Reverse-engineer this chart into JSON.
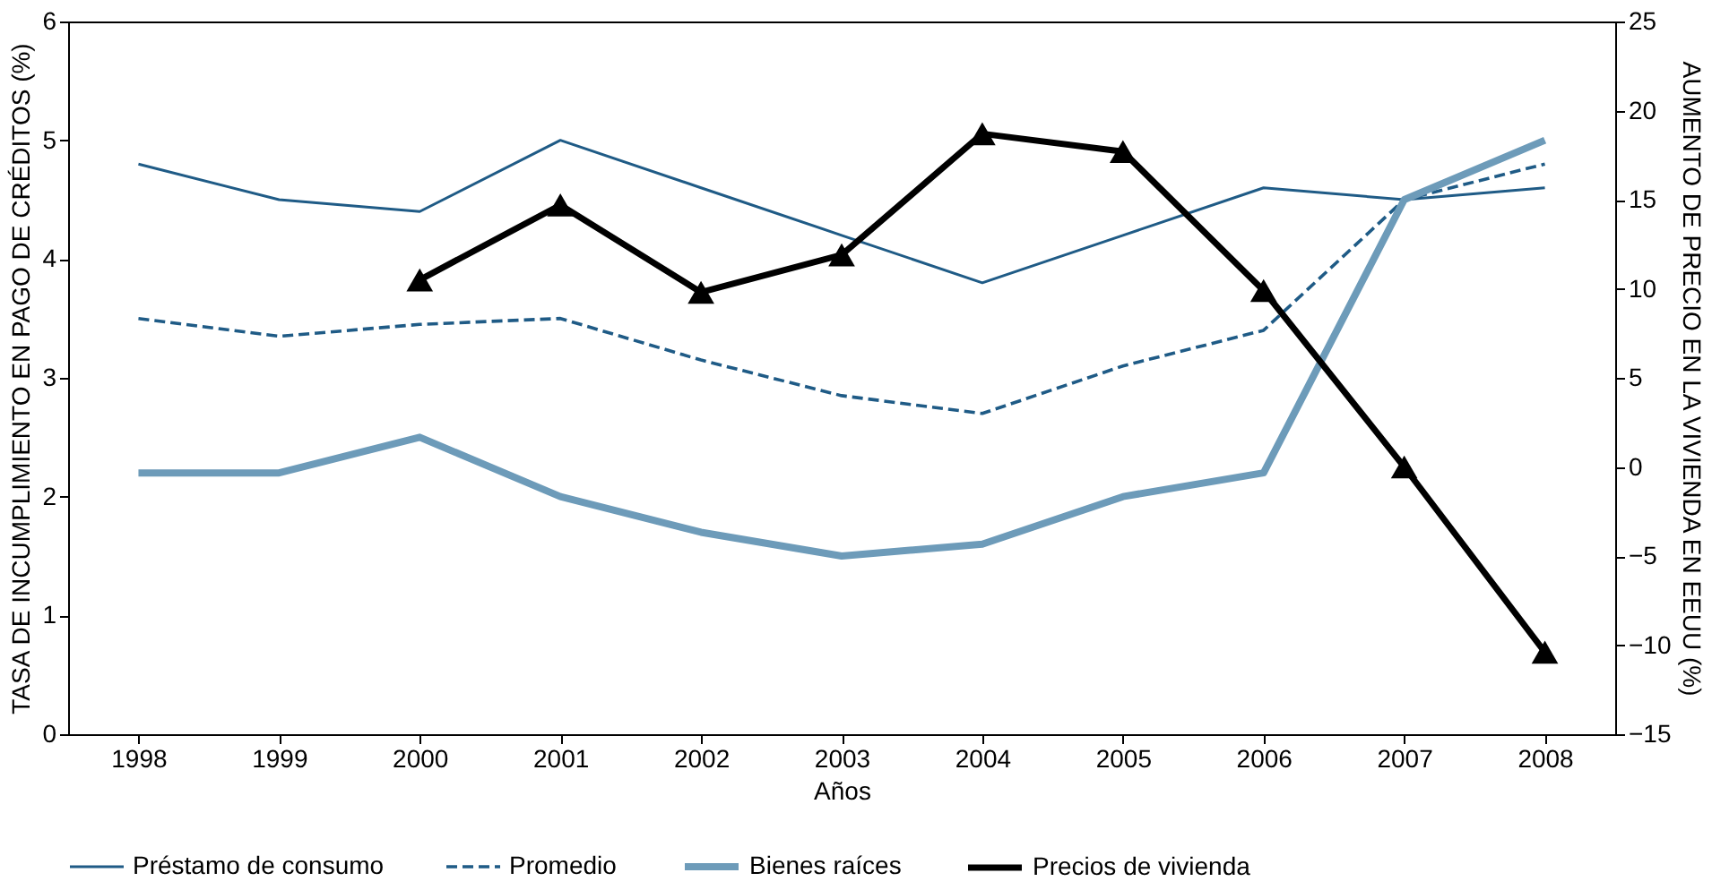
{
  "chart_data": {
    "type": "line",
    "xlabel": "Años",
    "ylabel": "TASA DE INCUMPLIMIENTO EN PAGO DE CRÉDITOS (%)",
    "y2label": "AUMENTO DE PRECIO EN LA VIVIENDA EN EEUU (%)",
    "categories": [
      "1998",
      "1999",
      "2000",
      "2001",
      "2002",
      "2003",
      "2004",
      "2005",
      "2006",
      "2007",
      "2008"
    ],
    "series": [
      {
        "name": "Préstamo de consumo",
        "color": "#1f5b86",
        "line_style": "solid",
        "marker": "none",
        "values": [
          4.8,
          4.5,
          4.4,
          5.0,
          4.6,
          4.2,
          3.8,
          4.2,
          4.6,
          4.5,
          4.6
        ]
      },
      {
        "name": "Promedio",
        "color": "#1f5b86",
        "line_style": "dashed",
        "marker": "none",
        "values": [
          3.5,
          3.35,
          3.45,
          3.5,
          3.15,
          2.85,
          2.7,
          3.1,
          3.4,
          4.5,
          4.8
        ]
      },
      {
        "name": "Bienes raíces",
        "color": "#6d9bb9",
        "line_style": "solid",
        "marker": "none",
        "values": [
          2.2,
          2.2,
          2.5,
          2.0,
          1.7,
          1.5,
          1.6,
          2.0,
          2.2,
          4.5,
          5.0
        ]
      },
      {
        "name": "Precios de vivienda",
        "color": "#000000",
        "line_style": "solid",
        "marker": "triangle",
        "axis": "y2",
        "values": [
          null,
          null,
          10.5,
          14.7,
          9.8,
          11.9,
          18.7,
          17.7,
          9.9,
          0,
          -10.4
        ]
      }
    ],
    "ylim": [
      0,
      6
    ],
    "yticks": [
      0,
      1,
      2,
      3,
      4,
      5,
      6
    ],
    "y2lim": [
      -15,
      25
    ],
    "y2ticks": [
      -15,
      -10,
      -5,
      0,
      5,
      10,
      15,
      20,
      25
    ],
    "grid": false,
    "legend": "bottom"
  }
}
